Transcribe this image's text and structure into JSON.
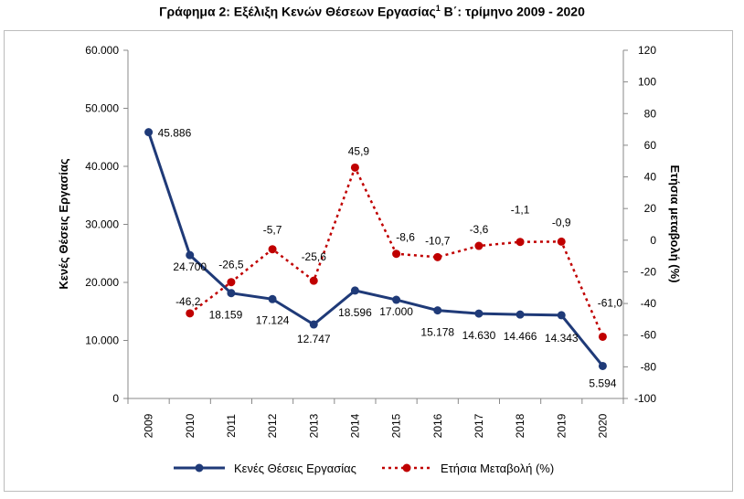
{
  "title_main": "Γράφημα 2: Εξέλιξη Κενών Θέσεων Εργασίας",
  "title_sup": "1",
  "title_tail": " Β΄: τρίμηνο 2009 - 2020",
  "chart_data": {
    "type": "line",
    "title": "Γράφημα 2: Εξέλιξη Κενών Θέσεων Εργασίας1 Β΄: τρίμηνο 2009 - 2020",
    "categories": [
      "2009",
      "2010",
      "2011",
      "2012",
      "2013",
      "2014",
      "2015",
      "2016",
      "2017",
      "2018",
      "2019",
      "2020"
    ],
    "ylabel_left": "Κενές Θέσεις Εργασίας",
    "ylabel_right": "Ετήσια μεταβολή (%)",
    "ylim_left": [
      0,
      60000
    ],
    "ylim_right": [
      -100,
      120
    ],
    "yticks_left": [
      "0",
      "10.000",
      "20.000",
      "30.000",
      "40.000",
      "50.000",
      "60.000"
    ],
    "yticks_right": [
      "-100",
      "-80",
      "-60",
      "-40",
      "-20",
      "0",
      "20",
      "40",
      "60",
      "80",
      "100",
      "120"
    ],
    "grid": false,
    "legend_position": "bottom",
    "series": [
      {
        "name": "Κενές Θέσεις Εργασίας",
        "axis": "left",
        "color": "#1f3a78",
        "style": "solid",
        "values": [
          45886,
          24700,
          18159,
          17124,
          12747,
          18596,
          17000,
          15178,
          14630,
          14466,
          14343,
          5594
        ],
        "labels": [
          "45.886",
          "24.700",
          "18.159",
          "17.124",
          "12.747",
          "18.596",
          "17.000",
          "15.178",
          "14.630",
          "14.466",
          "14.343",
          "5.594"
        ]
      },
      {
        "name": "Ετήσια Μεταβολή (%)",
        "axis": "right",
        "color": "#c00000",
        "style": "dotted",
        "values": [
          null,
          -46.2,
          -26.5,
          -5.7,
          -25.6,
          45.9,
          -8.6,
          -10.7,
          -3.6,
          -1.1,
          -0.9,
          -61.0
        ],
        "labels": [
          null,
          "-46,2",
          "-26,5",
          "-5,7",
          "-25,6",
          "45,9",
          "-8,6",
          "-10,7",
          "-3,6",
          "-1,1",
          "-0,9",
          "-61,0"
        ]
      }
    ]
  }
}
